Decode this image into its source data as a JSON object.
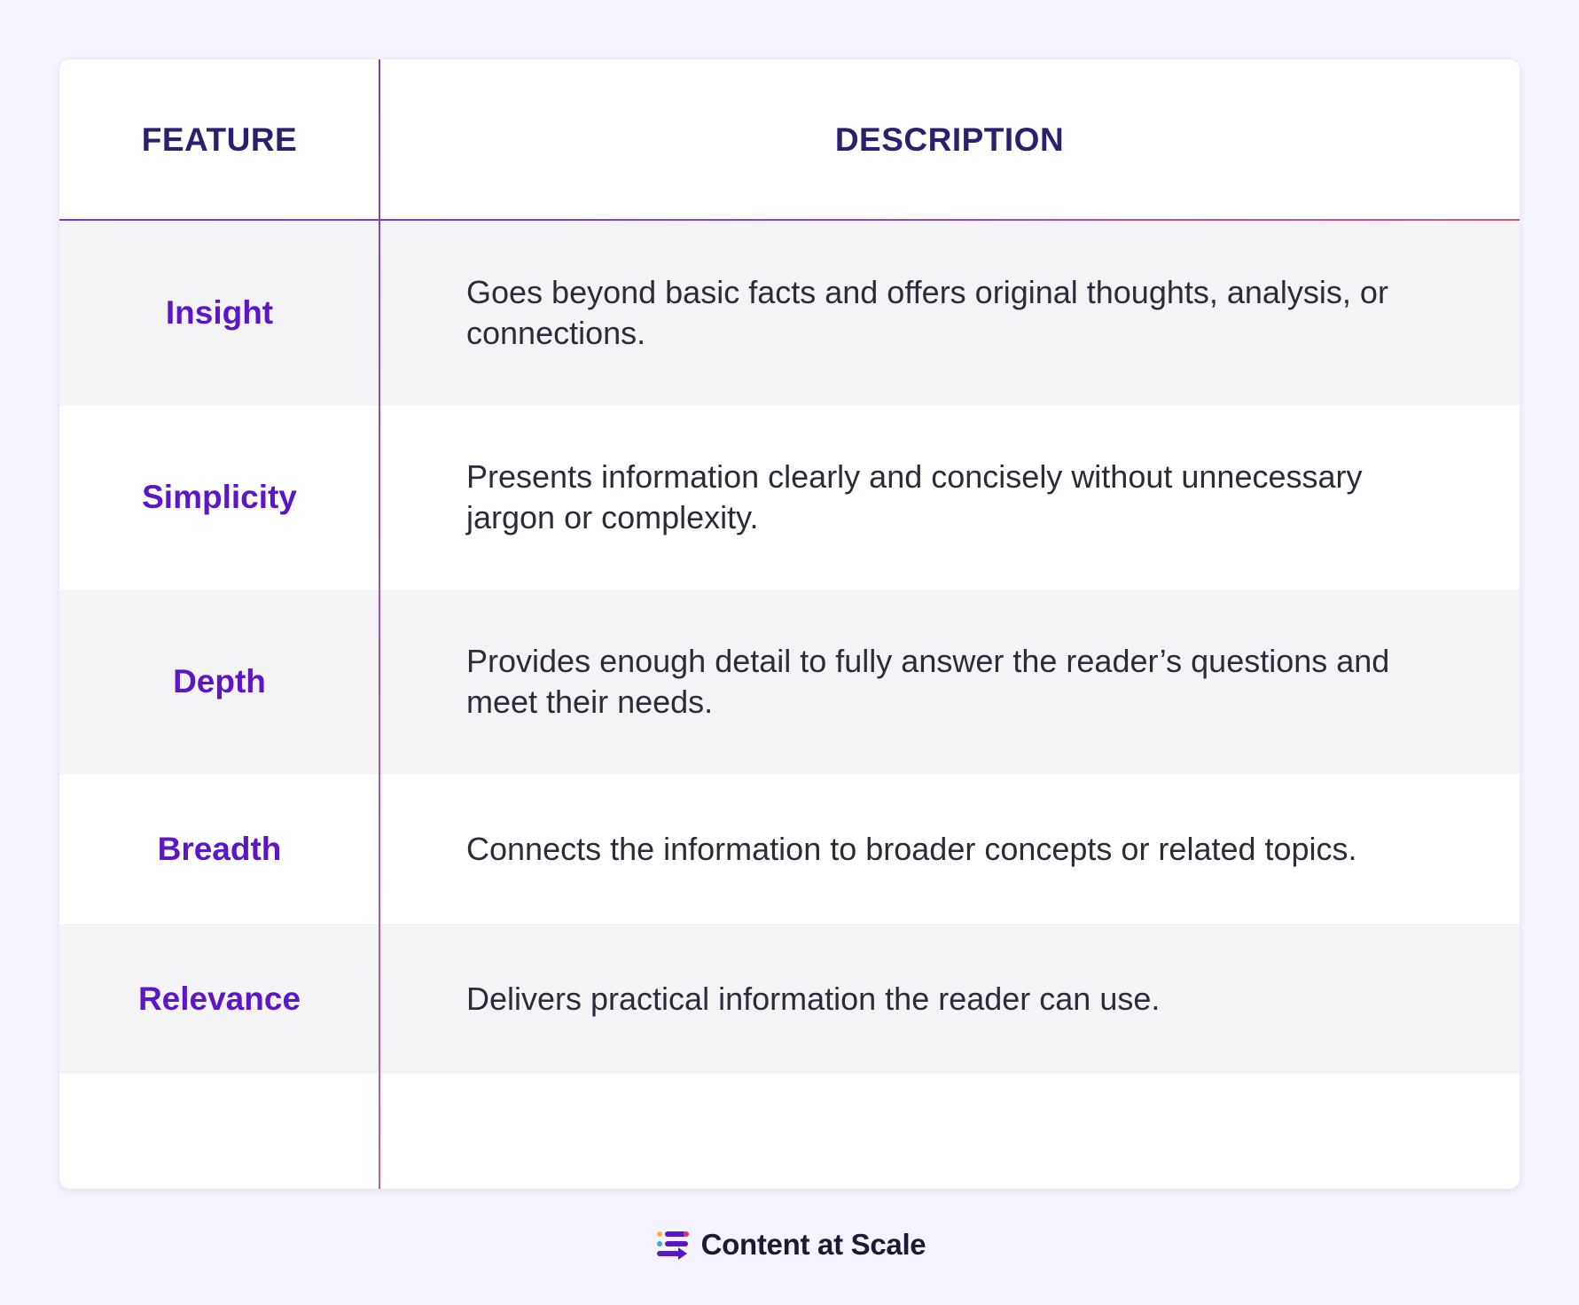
{
  "table": {
    "header": {
      "feature": "FEATURE",
      "description": "DESCRIPTION"
    },
    "rows": [
      {
        "feature": "Insight",
        "description": "Goes beyond basic facts and offers original thoughts, analysis, or connections."
      },
      {
        "feature": "Simplicity",
        "description": "Presents information clearly and concisely without unnecessary jargon or complexity."
      },
      {
        "feature": "Depth",
        "description": "Provides enough detail to fully answer the reader’s questions and meet their needs."
      },
      {
        "feature": "Breadth",
        "description": "Connects the information to broader concepts or related topics."
      },
      {
        "feature": "Relevance",
        "description": "Delivers practical information the reader can use."
      }
    ]
  },
  "footer": {
    "brand": "Content at Scale",
    "logo_icon": "content-at-scale-logo-icon"
  },
  "colors": {
    "background": "#f5f3fd",
    "header_text": "#2b1f6e",
    "feature_text": "#5b17c7",
    "divider_start": "#6a3fe0",
    "divider_end": "#d9537e"
  }
}
